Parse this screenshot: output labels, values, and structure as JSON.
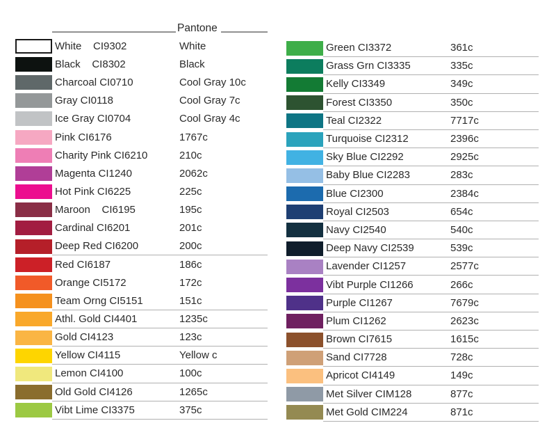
{
  "header": {
    "pantone_label": "Pantone"
  },
  "columns": {
    "left": {
      "rows": [
        {
          "name": "White",
          "code": "CI9302",
          "pantone": "White",
          "swatch": "#ffffff",
          "bordered": true,
          "wide_gap": true,
          "underline": false
        },
        {
          "name": "Black",
          "code": "CI8302",
          "pantone": "Black",
          "swatch": "#0d1210",
          "bordered": false,
          "wide_gap": true,
          "underline": false
        },
        {
          "name": "Charcoal",
          "code": "CI0710",
          "pantone": "Cool Gray 10c",
          "swatch": "#5f6869",
          "bordered": false,
          "wide_gap": false,
          "underline": false
        },
        {
          "name": "Gray",
          "code": "CI0118",
          "pantone": "Cool Gray 7c",
          "swatch": "#949899",
          "bordered": false,
          "wide_gap": false,
          "underline": false
        },
        {
          "name": "Ice Gray",
          "code": "CI0704",
          "pantone": "Cool Gray 4c",
          "swatch": "#c1c3c5",
          "bordered": false,
          "wide_gap": false,
          "underline": false
        },
        {
          "name": "Pink",
          "code": "CI6176",
          "pantone": "1767c",
          "swatch": "#f6a8c2",
          "bordered": false,
          "wide_gap": false,
          "underline": false
        },
        {
          "name": "Charity Pink",
          "code": "CI6210",
          "pantone": "210c",
          "swatch": "#ee7eb5",
          "bordered": false,
          "wide_gap": false,
          "underline": false
        },
        {
          "name": "Magenta",
          "code": "CI1240",
          "pantone": "2062c",
          "swatch": "#b03e97",
          "bordered": false,
          "wide_gap": false,
          "underline": false
        },
        {
          "name": "Hot Pink",
          "code": "CI6225",
          "pantone": "225c",
          "swatch": "#ec0e8f",
          "bordered": false,
          "wide_gap": false,
          "underline": false
        },
        {
          "name": "Maroon",
          "code": "CI6195",
          "pantone": "195c",
          "swatch": "#8a2e46",
          "bordered": false,
          "wide_gap": true,
          "underline": false
        },
        {
          "name": "Cardinal",
          "code": "CI6201",
          "pantone": "201c",
          "swatch": "#a21d41",
          "bordered": false,
          "wide_gap": false,
          "underline": false
        },
        {
          "name": "Deep Red",
          "code": "CI6200",
          "pantone": "200c",
          "swatch": "#b51f29",
          "bordered": false,
          "wide_gap": false,
          "underline": true
        },
        {
          "name": "Red",
          "code": "CI6187",
          "pantone": "186c",
          "swatch": "#cc2027",
          "bordered": false,
          "wide_gap": false,
          "underline": false
        },
        {
          "name": "Orange",
          "code": "CI5172",
          "pantone": "172c",
          "swatch": "#f15a29",
          "bordered": false,
          "wide_gap": false,
          "underline": false
        },
        {
          "name": "Team Orng",
          "code": "CI5151",
          "pantone": "151c",
          "swatch": "#f5911e",
          "bordered": false,
          "wide_gap": false,
          "underline": true
        },
        {
          "name": "Athl. Gold",
          "code": "CI4401",
          "pantone": "1235c",
          "swatch": "#f9a82b",
          "bordered": false,
          "wide_gap": false,
          "underline": true
        },
        {
          "name": "Gold",
          "code": "CI4123",
          "pantone": "123c",
          "swatch": "#fab544",
          "bordered": false,
          "wide_gap": false,
          "underline": true
        },
        {
          "name": "Yellow",
          "code": "CI4115",
          "pantone": "Yellow c",
          "swatch": "#fed500",
          "bordered": false,
          "wide_gap": false,
          "underline": true
        },
        {
          "name": "Lemon",
          "code": "CI4100",
          "pantone": "100c",
          "swatch": "#f0e87d",
          "bordered": false,
          "wide_gap": false,
          "underline": true
        },
        {
          "name": "Old Gold",
          "code": "CI4126",
          "pantone": "1265c",
          "swatch": "#8a6d2e",
          "bordered": false,
          "wide_gap": false,
          "underline": true
        },
        {
          "name": "Vibt Lime",
          "code": "CI3375",
          "pantone": "375c",
          "swatch": "#9cc943",
          "bordered": false,
          "wide_gap": false,
          "underline": true
        }
      ]
    },
    "right": {
      "rows": [
        {
          "name": "Green",
          "code": "CI3372",
          "pantone": "361c",
          "swatch": "#3eae49",
          "bordered": false,
          "wide_gap": false,
          "underline": true
        },
        {
          "name": "Grass Grn",
          "code": "CI3335",
          "pantone": "335c",
          "swatch": "#0c7d5e",
          "bordered": false,
          "wide_gap": false,
          "underline": true
        },
        {
          "name": "Kelly",
          "code": "CI3349",
          "pantone": "349c",
          "swatch": "#137b34",
          "bordered": false,
          "wide_gap": false,
          "underline": true
        },
        {
          "name": "Forest",
          "code": "CI3350",
          "pantone": "350c",
          "swatch": "#2d5331",
          "bordered": false,
          "wide_gap": false,
          "underline": true
        },
        {
          "name": "Teal",
          "code": "CI2322",
          "pantone": "7717c",
          "swatch": "#0e7584",
          "bordered": false,
          "wide_gap": false,
          "underline": true
        },
        {
          "name": "Turquoise",
          "code": "CI2312",
          "pantone": "2396c",
          "swatch": "#2ba3bc",
          "bordered": false,
          "wide_gap": false,
          "underline": true
        },
        {
          "name": "Sky Blue",
          "code": "CI2292",
          "pantone": "2925c",
          "swatch": "#41b2e3",
          "bordered": false,
          "wide_gap": false,
          "underline": true
        },
        {
          "name": "Baby Blue",
          "code": "CI2283",
          "pantone": "283c",
          "swatch": "#95bfe5",
          "bordered": false,
          "wide_gap": false,
          "underline": true
        },
        {
          "name": "Blue",
          "code": "CI2300",
          "pantone": "2384c",
          "swatch": "#1c6bae",
          "bordered": false,
          "wide_gap": false,
          "underline": true
        },
        {
          "name": "Royal",
          "code": "CI2503",
          "pantone": "654c",
          "swatch": "#1e3f73",
          "bordered": false,
          "wide_gap": false,
          "underline": true
        },
        {
          "name": "Navy",
          "code": "CI2540",
          "pantone": "540c",
          "swatch": "#133040",
          "bordered": false,
          "wide_gap": false,
          "underline": true
        },
        {
          "name": "Deep Navy",
          "code": "CI2539",
          "pantone": "539c",
          "swatch": "#0f1d2b",
          "bordered": false,
          "wide_gap": false,
          "underline": true
        },
        {
          "name": "Lavender",
          "code": "CI1257",
          "pantone": "2577c",
          "swatch": "#a981c3",
          "bordered": false,
          "wide_gap": false,
          "underline": true
        },
        {
          "name": "Vibt Purple",
          "code": "CI1266",
          "pantone": "266c",
          "swatch": "#7c309e",
          "bordered": false,
          "wide_gap": false,
          "underline": true
        },
        {
          "name": "Purple",
          "code": "CI1267",
          "pantone": "7679c",
          "swatch": "#4f3189",
          "bordered": false,
          "wide_gap": false,
          "underline": true
        },
        {
          "name": "Plum",
          "code": "CI1262",
          "pantone": "2623c",
          "swatch": "#6f2060",
          "bordered": false,
          "wide_gap": false,
          "underline": true
        },
        {
          "name": "Brown",
          "code": "CI7615",
          "pantone": "1615c",
          "swatch": "#8c512c",
          "bordered": false,
          "wide_gap": false,
          "underline": true
        },
        {
          "name": "Sand",
          "code": "CI7728",
          "pantone": "728c",
          "swatch": "#cfa077",
          "bordered": false,
          "wide_gap": false,
          "underline": true
        },
        {
          "name": "Apricot",
          "code": "CI4149",
          "pantone": "149c",
          "swatch": "#fbc07f",
          "bordered": false,
          "wide_gap": false,
          "underline": true
        },
        {
          "name": "Met Silver",
          "code": "CIM128",
          "pantone": "877c",
          "swatch": "#8f9aa6",
          "bordered": false,
          "wide_gap": false,
          "underline": true
        },
        {
          "name": "Met Gold",
          "code": "CIM224",
          "pantone": "871c",
          "swatch": "#948a52",
          "bordered": false,
          "wide_gap": false,
          "underline": true
        }
      ]
    }
  }
}
